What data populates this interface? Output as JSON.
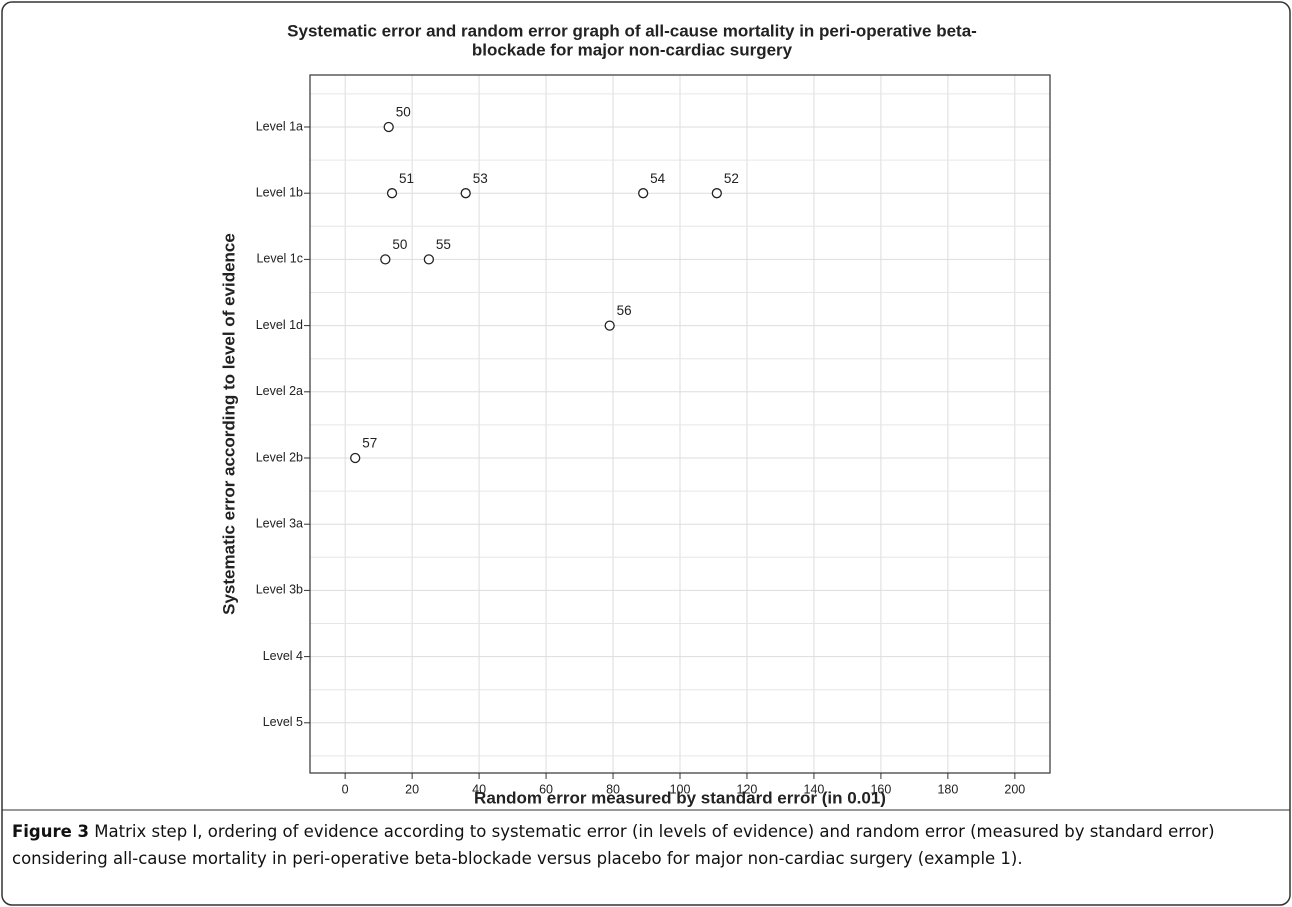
{
  "chart_data": {
    "type": "scatter",
    "title": [
      "Systematic error and random error graph of all-cause mortality in peri-operative beta-",
      "blockade for major non-cardiac surgery"
    ],
    "x_label": "Random error measured by standard error (in 0.01)",
    "y_label": "Systematic error according to level of evidence",
    "xlim": [
      -10.5,
      210.5
    ],
    "xticks": [
      0,
      20,
      40,
      60,
      80,
      100,
      120,
      140,
      160,
      180,
      200
    ],
    "y_categories": [
      "Level 1a",
      "Level 1b",
      "Level 1c",
      "Level 1d",
      "Level 2a",
      "Level 2b",
      "Level 3a",
      "Level 3b",
      "Level 4",
      "Level 5"
    ],
    "points": {
      "x": [
        13,
        14,
        36,
        89,
        111,
        12,
        25,
        79,
        3
      ],
      "y": [
        "Level 1a",
        "Level 1b",
        "Level 1b",
        "Level 1b",
        "Level 1b",
        "Level 1c",
        "Level 1c",
        "Level 1d",
        "Level 2b"
      ],
      "labels": [
        "50",
        "51",
        "53",
        "54",
        "52",
        "50",
        "55",
        "56",
        "57"
      ]
    },
    "grid": true,
    "marker_color": "#222222"
  },
  "caption": {
    "label": "Figure 3",
    "text": " Matrix step I, ordering of evidence according to systematic error (in levels of evidence) and random error (measured by standard error) considering all-cause mortality in peri-operative beta-blockade versus placebo for major non-cardiac surgery (example 1)."
  }
}
